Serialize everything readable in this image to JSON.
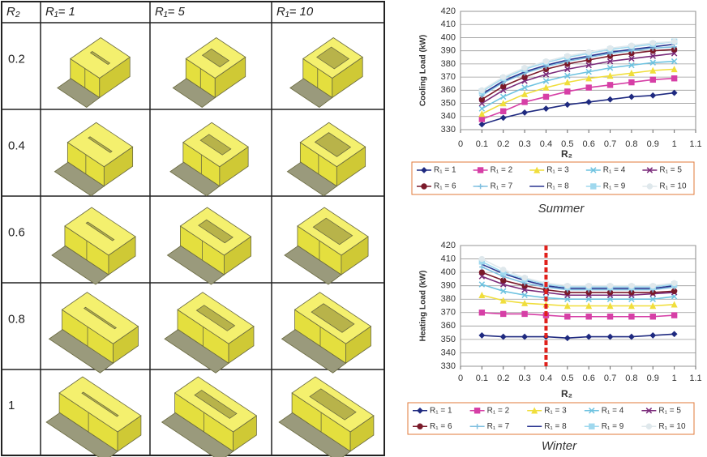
{
  "table": {
    "header": [
      "R₂",
      "R₁= 1",
      "R₁= 5",
      "R₁= 10"
    ],
    "rows": [
      0.2,
      0.4,
      0.6,
      0.8,
      1
    ]
  },
  "chart_data": [
    {
      "type": "line",
      "caption": "Summer",
      "xlabel": "R₂",
      "ylabel": "Cooling Load (kW)",
      "x": [
        0.1,
        0.2,
        0.3,
        0.4,
        0.5,
        0.6,
        0.7,
        0.8,
        0.9,
        1
      ],
      "xlim": [
        0,
        1.1
      ],
      "xticks": [
        0,
        0.1,
        0.2,
        0.3,
        0.4,
        0.5,
        0.6,
        0.7,
        0.8,
        0.9,
        1,
        1.1
      ],
      "ylim": [
        330,
        420
      ],
      "yticks": [
        330,
        340,
        350,
        360,
        370,
        380,
        390,
        400,
        410,
        420
      ],
      "grid": true,
      "series": [
        {
          "name": "R₁ = 1",
          "color": "#1f2a80",
          "marker": "diamond",
          "values": [
            334,
            339,
            343,
            346,
            349,
            351,
            353,
            355,
            356,
            358
          ]
        },
        {
          "name": "R₁ = 2",
          "color": "#d63fa6",
          "marker": "square",
          "values": [
            338,
            344,
            351,
            355,
            359,
            362,
            364,
            366,
            368,
            369
          ]
        },
        {
          "name": "R₁ = 3",
          "color": "#f0de3c",
          "marker": "triangle",
          "values": [
            342,
            350,
            357,
            362,
            366,
            369,
            371,
            373,
            375,
            376
          ]
        },
        {
          "name": "R₁ = 4",
          "color": "#6fc3e0",
          "marker": "x",
          "values": [
            346,
            355,
            362,
            367,
            371,
            374,
            377,
            379,
            381,
            382
          ]
        },
        {
          "name": "R₁ = 5",
          "color": "#7a2a7a",
          "marker": "x",
          "values": [
            350,
            360,
            367,
            372,
            376,
            379,
            382,
            384,
            386,
            388
          ]
        },
        {
          "name": "R₁ = 6",
          "color": "#7a1a2a",
          "marker": "circle",
          "values": [
            353,
            363,
            370,
            376,
            380,
            383,
            386,
            388,
            390,
            391
          ]
        },
        {
          "name": "R₁ = 7",
          "color": "#7fbfe0",
          "marker": "plus",
          "values": [
            356,
            366,
            373,
            378,
            382,
            385,
            388,
            390,
            392,
            393
          ]
        },
        {
          "name": "R₁ = 8",
          "color": "#2a3590",
          "marker": "none",
          "values": [
            357,
            367,
            374,
            379,
            383,
            386,
            389,
            391,
            393,
            395
          ]
        },
        {
          "name": "R₁ = 9",
          "color": "#9fd8ee",
          "marker": "square",
          "values": [
            359,
            369,
            376,
            381,
            385,
            388,
            391,
            393,
            395,
            397
          ]
        },
        {
          "name": "R₁ = 10",
          "color": "#dfe8ec",
          "marker": "circle",
          "values": [
            360,
            370,
            377,
            382,
            386,
            389,
            392,
            394,
            396,
            397
          ]
        }
      ]
    },
    {
      "type": "line",
      "caption": "Winter",
      "xlabel": "R₂",
      "ylabel": "Heating Load (kW)",
      "x": [
        0.1,
        0.2,
        0.3,
        0.4,
        0.5,
        0.6,
        0.7,
        0.8,
        0.9,
        1
      ],
      "xlim": [
        0,
        1.1
      ],
      "xticks": [
        0,
        0.1,
        0.2,
        0.3,
        0.4,
        0.5,
        0.6,
        0.7,
        0.8,
        0.9,
        1,
        1.1
      ],
      "ylim": [
        330,
        420
      ],
      "yticks": [
        330,
        340,
        350,
        360,
        370,
        380,
        390,
        400,
        410,
        420
      ],
      "grid": true,
      "vline": {
        "x": 0.4,
        "color": "#e0201b"
      },
      "series": [
        {
          "name": "R₁ = 1",
          "color": "#1f2a80",
          "marker": "diamond",
          "values": [
            353,
            352,
            352,
            352,
            351,
            352,
            352,
            352,
            353,
            354
          ]
        },
        {
          "name": "R₁ = 2",
          "color": "#d63fa6",
          "marker": "square",
          "values": [
            370,
            369,
            369,
            368,
            367,
            367,
            367,
            367,
            367,
            368
          ]
        },
        {
          "name": "R₁ = 3",
          "color": "#f0de3c",
          "marker": "triangle",
          "values": [
            383,
            379,
            377,
            376,
            375,
            375,
            375,
            375,
            375,
            376
          ]
        },
        {
          "name": "R₁ = 4",
          "color": "#6fc3e0",
          "marker": "x",
          "values": [
            391,
            386,
            383,
            381,
            380,
            380,
            380,
            380,
            380,
            382
          ]
        },
        {
          "name": "R₁ = 5",
          "color": "#7a2a7a",
          "marker": "x",
          "values": [
            397,
            391,
            387,
            385,
            383,
            383,
            383,
            383,
            384,
            385
          ]
        },
        {
          "name": "R₁ = 6",
          "color": "#7a1a2a",
          "marker": "circle",
          "values": [
            400,
            394,
            390,
            387,
            385,
            385,
            385,
            385,
            385,
            386
          ]
        },
        {
          "name": "R₁ = 7",
          "color": "#7fbfe0",
          "marker": "plus",
          "values": [
            404,
            397,
            392,
            389,
            387,
            387,
            387,
            387,
            387,
            389
          ]
        },
        {
          "name": "R₁ = 8",
          "color": "#2a3590",
          "marker": "none",
          "values": [
            406,
            399,
            394,
            390,
            388,
            388,
            388,
            388,
            388,
            390
          ]
        },
        {
          "name": "R₁ = 9",
          "color": "#9fd8ee",
          "marker": "square",
          "values": [
            408,
            400,
            395,
            391,
            389,
            389,
            389,
            389,
            389,
            391
          ]
        },
        {
          "name": "R₁ = 10",
          "color": "#dfe8ec",
          "marker": "circle",
          "values": [
            410,
            402,
            396,
            392,
            390,
            390,
            390,
            390,
            390,
            392
          ]
        }
      ]
    }
  ]
}
